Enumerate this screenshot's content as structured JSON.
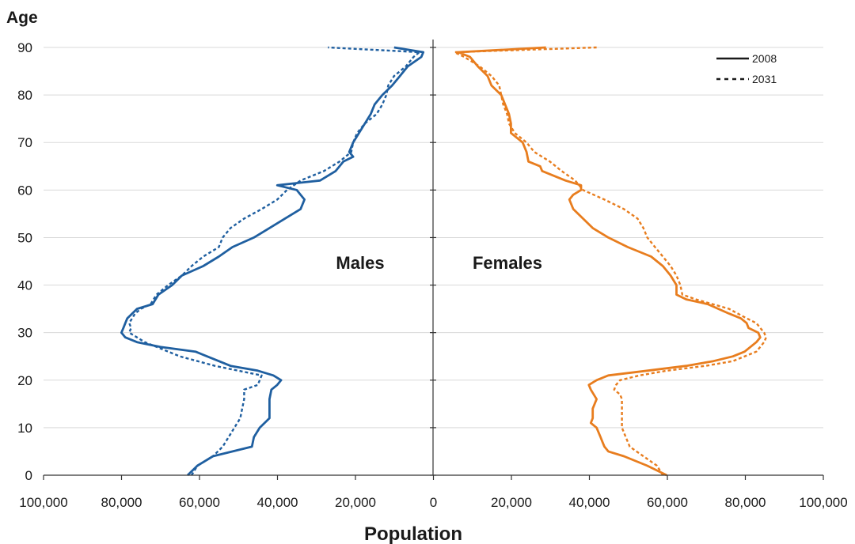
{
  "chart_data": {
    "type": "line",
    "title": "",
    "xlabel": "Population",
    "ylabel": "Age",
    "xlim": [
      -100000,
      100000
    ],
    "ylim": [
      0,
      90
    ],
    "x_tick_labels": [
      "100,000",
      "80,000",
      "60,000",
      "40,000",
      "20,000",
      "0",
      "20,000",
      "40,000",
      "60,000",
      "80,000",
      "100,000"
    ],
    "y_tick_labels": [
      "0",
      "10",
      "20",
      "30",
      "40",
      "50",
      "60",
      "70",
      "80",
      "90"
    ],
    "grid": "horizontal",
    "panel_labels": {
      "left": "Males",
      "right": "Females"
    },
    "legend": {
      "placement": "top-right",
      "entries": [
        {
          "label": "2008",
          "style": "solid"
        },
        {
          "label": "2031",
          "style": "dashed"
        }
      ]
    },
    "colors": {
      "males": "#1f5fa0",
      "females": "#e87d1e",
      "grid": "#d9d9d9",
      "axis": "#333333"
    },
    "series": [
      {
        "name": "2008",
        "group": "Males",
        "style": "solid",
        "points": [
          [
            0,
            63000
          ],
          [
            2,
            60500
          ],
          [
            4,
            56500
          ],
          [
            6,
            46500
          ],
          [
            8,
            46000
          ],
          [
            10,
            44500
          ],
          [
            12,
            42000
          ],
          [
            14,
            42000
          ],
          [
            16,
            42000
          ],
          [
            18,
            41500
          ],
          [
            19,
            40000
          ],
          [
            20,
            39000
          ],
          [
            21,
            41000
          ],
          [
            22,
            45000
          ],
          [
            23,
            52000
          ],
          [
            24,
            55000
          ],
          [
            26,
            61000
          ],
          [
            27,
            70000
          ],
          [
            28,
            76000
          ],
          [
            29,
            79000
          ],
          [
            30,
            80000
          ],
          [
            31,
            79500
          ],
          [
            32,
            79000
          ],
          [
            33,
            78500
          ],
          [
            35,
            76000
          ],
          [
            36,
            72000
          ],
          [
            38,
            70500
          ],
          [
            40,
            67000
          ],
          [
            42,
            64500
          ],
          [
            44,
            59000
          ],
          [
            46,
            55000
          ],
          [
            48,
            51500
          ],
          [
            50,
            46000
          ],
          [
            52,
            42000
          ],
          [
            54,
            38000
          ],
          [
            56,
            34000
          ],
          [
            58,
            33000
          ],
          [
            60,
            35000
          ],
          [
            61,
            40000
          ],
          [
            62,
            29000
          ],
          [
            64,
            25000
          ],
          [
            66,
            23000
          ],
          [
            67,
            20500
          ],
          [
            68,
            21500
          ],
          [
            70,
            20500
          ],
          [
            72,
            19000
          ],
          [
            74,
            17500
          ],
          [
            76,
            16000
          ],
          [
            78,
            15000
          ],
          [
            80,
            13000
          ],
          [
            82,
            10500
          ],
          [
            84,
            8500
          ],
          [
            86,
            6500
          ],
          [
            88,
            3000
          ],
          [
            89,
            2500
          ],
          [
            90,
            10000
          ]
        ]
      },
      {
        "name": "2031",
        "group": "Males",
        "style": "dashed",
        "points": [
          [
            0,
            62000
          ],
          [
            2,
            60500
          ],
          [
            4,
            56500
          ],
          [
            6,
            54000
          ],
          [
            8,
            52500
          ],
          [
            10,
            51000
          ],
          [
            12,
            49500
          ],
          [
            14,
            49000
          ],
          [
            16,
            48500
          ],
          [
            18,
            48500
          ],
          [
            19,
            45000
          ],
          [
            20,
            44500
          ],
          [
            21,
            44000
          ],
          [
            22,
            50000
          ],
          [
            23,
            56000
          ],
          [
            25,
            65000
          ],
          [
            27,
            71000
          ],
          [
            28,
            74000
          ],
          [
            29,
            76000
          ],
          [
            30,
            78000
          ],
          [
            31,
            77500
          ],
          [
            32,
            78000
          ],
          [
            34,
            76500
          ],
          [
            35,
            75000
          ],
          [
            36,
            72500
          ],
          [
            38,
            71000
          ],
          [
            40,
            68000
          ],
          [
            42,
            64500
          ],
          [
            44,
            62000
          ],
          [
            46,
            59000
          ],
          [
            48,
            55000
          ],
          [
            50,
            54000
          ],
          [
            52,
            52000
          ],
          [
            54,
            48500
          ],
          [
            56,
            44000
          ],
          [
            58,
            40000
          ],
          [
            60,
            37500
          ],
          [
            62,
            34000
          ],
          [
            64,
            28000
          ],
          [
            66,
            24000
          ],
          [
            68,
            21000
          ],
          [
            70,
            20500
          ],
          [
            72,
            19500
          ],
          [
            74,
            17500
          ],
          [
            76,
            14500
          ],
          [
            78,
            13000
          ],
          [
            80,
            12000
          ],
          [
            82,
            11500
          ],
          [
            84,
            10000
          ],
          [
            86,
            7000
          ],
          [
            88,
            5000
          ],
          [
            89,
            3500
          ],
          [
            90,
            27000
          ]
        ]
      },
      {
        "name": "2008",
        "group": "Females",
        "style": "solid",
        "points": [
          [
            0,
            60000
          ],
          [
            2,
            55000
          ],
          [
            4,
            49000
          ],
          [
            5,
            45000
          ],
          [
            6,
            44000
          ],
          [
            7,
            43500
          ],
          [
            8,
            43000
          ],
          [
            10,
            42000
          ],
          [
            11,
            40500
          ],
          [
            12,
            41000
          ],
          [
            14,
            41000
          ],
          [
            16,
            42000
          ],
          [
            18,
            40500
          ],
          [
            19,
            40000
          ],
          [
            20,
            42000
          ],
          [
            21,
            45000
          ],
          [
            22,
            55000
          ],
          [
            23,
            65000
          ],
          [
            24,
            72000
          ],
          [
            25,
            77000
          ],
          [
            26,
            80000
          ],
          [
            28,
            83000
          ],
          [
            29,
            84000
          ],
          [
            30,
            83500
          ],
          [
            31,
            81000
          ],
          [
            32,
            80500
          ],
          [
            33,
            79000
          ],
          [
            34,
            76000
          ],
          [
            36,
            70500
          ],
          [
            37,
            65000
          ],
          [
            38,
            62500
          ],
          [
            40,
            62500
          ],
          [
            42,
            61000
          ],
          [
            44,
            59000
          ],
          [
            46,
            56000
          ],
          [
            48,
            50000
          ],
          [
            50,
            45000
          ],
          [
            52,
            41000
          ],
          [
            54,
            38500
          ],
          [
            56,
            36000
          ],
          [
            58,
            35000
          ],
          [
            59,
            36000
          ],
          [
            60,
            38000
          ],
          [
            61,
            38000
          ],
          [
            62,
            34000
          ],
          [
            64,
            28000
          ],
          [
            65,
            27500
          ],
          [
            66,
            24500
          ],
          [
            68,
            24000
          ],
          [
            70,
            23000
          ],
          [
            72,
            20000
          ],
          [
            74,
            20000
          ],
          [
            76,
            19500
          ],
          [
            78,
            18500
          ],
          [
            80,
            17500
          ],
          [
            82,
            15000
          ],
          [
            84,
            14000
          ],
          [
            86,
            11500
          ],
          [
            88,
            9500
          ],
          [
            89,
            6500
          ],
          [
            90,
            29000
          ]
        ]
      },
      {
        "name": "2031",
        "group": "Females",
        "style": "dashed",
        "points": [
          [
            0,
            59000
          ],
          [
            2,
            57500
          ],
          [
            4,
            54000
          ],
          [
            6,
            50500
          ],
          [
            8,
            49500
          ],
          [
            10,
            48500
          ],
          [
            12,
            48500
          ],
          [
            14,
            48500
          ],
          [
            16,
            48500
          ],
          [
            17,
            48000
          ],
          [
            18,
            46500
          ],
          [
            19,
            47000
          ],
          [
            20,
            48000
          ],
          [
            21,
            53000
          ],
          [
            22,
            60000
          ],
          [
            23,
            70000
          ],
          [
            24,
            77000
          ],
          [
            26,
            83000
          ],
          [
            28,
            85000
          ],
          [
            29,
            85500
          ],
          [
            30,
            85000
          ],
          [
            31,
            84000
          ],
          [
            32,
            83000
          ],
          [
            33,
            80500
          ],
          [
            35,
            76000
          ],
          [
            37,
            67500
          ],
          [
            38,
            64000
          ],
          [
            40,
            63500
          ],
          [
            42,
            62500
          ],
          [
            44,
            61000
          ],
          [
            46,
            59000
          ],
          [
            48,
            57000
          ],
          [
            50,
            55000
          ],
          [
            52,
            54000
          ],
          [
            54,
            52500
          ],
          [
            56,
            49000
          ],
          [
            58,
            44000
          ],
          [
            60,
            38500
          ],
          [
            62,
            36500
          ],
          [
            64,
            33000
          ],
          [
            66,
            30000
          ],
          [
            68,
            26000
          ],
          [
            70,
            24000
          ],
          [
            72,
            21000
          ],
          [
            74,
            19500
          ],
          [
            76,
            19000
          ],
          [
            78,
            18000
          ],
          [
            80,
            17500
          ],
          [
            82,
            17000
          ],
          [
            84,
            15000
          ],
          [
            86,
            12000
          ],
          [
            88,
            8000
          ],
          [
            89,
            5500
          ],
          [
            90,
            42000
          ]
        ]
      }
    ]
  }
}
